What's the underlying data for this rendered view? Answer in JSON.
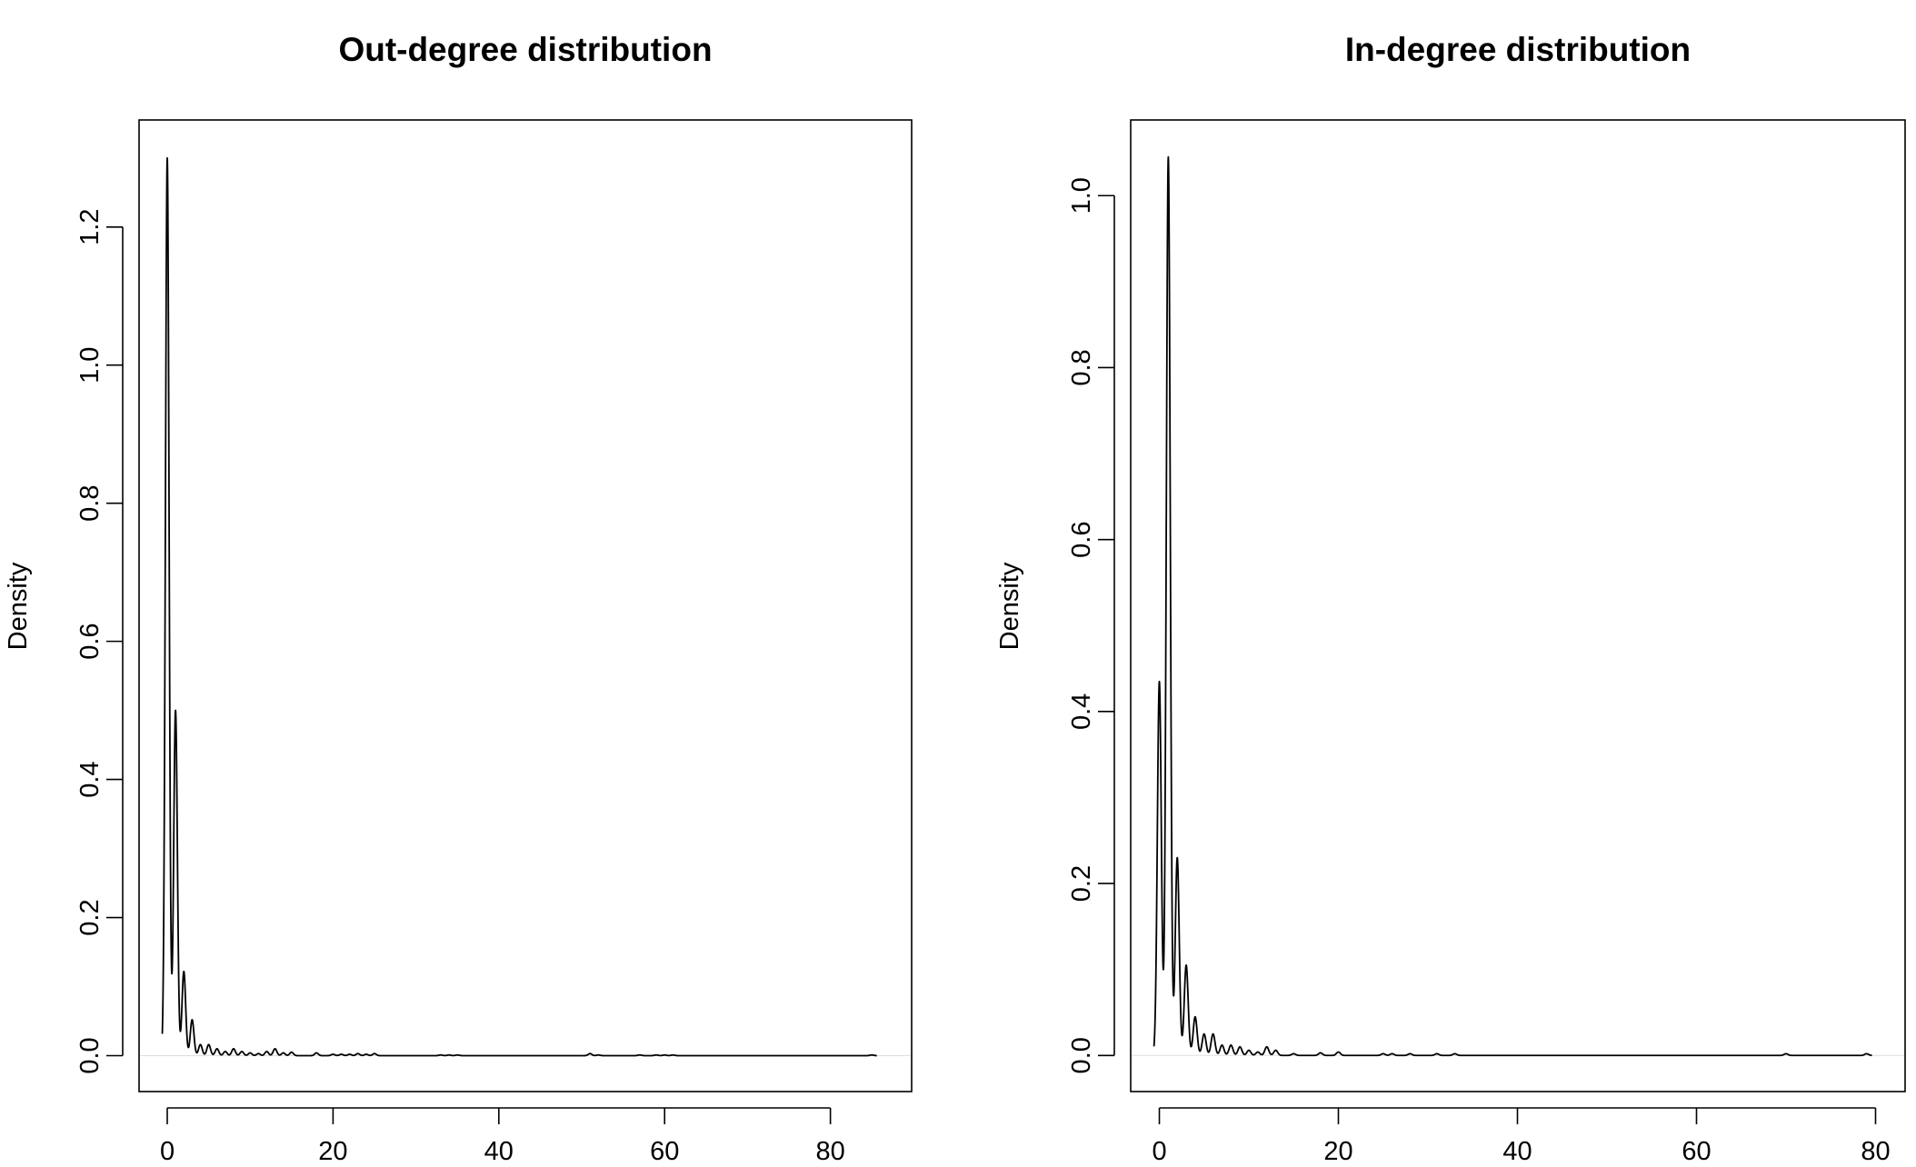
{
  "chart_data": [
    {
      "type": "line",
      "title": "Out-degree distribution",
      "xlabel": "",
      "ylabel": "Density",
      "xlim": [
        -3.4,
        89.8
      ],
      "ylim": [
        -0.052,
        1.355
      ],
      "xticks": [
        0,
        20,
        40,
        60,
        80
      ],
      "yticks": [
        0.0,
        0.2,
        0.4,
        0.6,
        0.8,
        1.0,
        1.2
      ],
      "grid": false,
      "legend": "none",
      "series": [
        {
          "color": "#000000",
          "peaks": [
            [
              0,
              1.3
            ],
            [
              1,
              0.5
            ],
            [
              2,
              0.122
            ],
            [
              3,
              0.052
            ],
            [
              4,
              0.016
            ],
            [
              5,
              0.016
            ],
            [
              6,
              0.01
            ],
            [
              7,
              0.006
            ],
            [
              8,
              0.01
            ],
            [
              9,
              0.006
            ],
            [
              10,
              0.004
            ],
            [
              11,
              0.003
            ],
            [
              12,
              0.006
            ],
            [
              13,
              0.01
            ],
            [
              14,
              0.004
            ],
            [
              15,
              0.005
            ],
            [
              18,
              0.004
            ],
            [
              20,
              0.002
            ],
            [
              21,
              0.002
            ],
            [
              22,
              0.002
            ],
            [
              23,
              0.003
            ],
            [
              24,
              0.002
            ],
            [
              25,
              0.003
            ],
            [
              33,
              0.001
            ],
            [
              34,
              0.001
            ],
            [
              35,
              0.001
            ],
            [
              51,
              0.003
            ],
            [
              52,
              0.001
            ],
            [
              57,
              0.001
            ],
            [
              59,
              0.001
            ],
            [
              60,
              0.001
            ],
            [
              61,
              0.001
            ],
            [
              85,
              0.001
            ]
          ]
        }
      ]
    },
    {
      "type": "line",
      "title": "In-degree distribution",
      "xlabel": "",
      "ylabel": "Density",
      "xlim": [
        -3.2,
        83.3
      ],
      "ylim": [
        -0.042,
        1.088
      ],
      "xticks": [
        0,
        20,
        40,
        60,
        80
      ],
      "yticks": [
        0.0,
        0.2,
        0.4,
        0.6,
        0.8,
        1.0
      ],
      "grid": false,
      "legend": "none",
      "series": [
        {
          "color": "#000000",
          "peaks": [
            [
              0,
              0.435
            ],
            [
              1,
              1.045
            ],
            [
              2,
              0.23
            ],
            [
              3,
              0.105
            ],
            [
              4,
              0.045
            ],
            [
              5,
              0.025
            ],
            [
              6,
              0.025
            ],
            [
              7,
              0.012
            ],
            [
              8,
              0.012
            ],
            [
              9,
              0.01
            ],
            [
              10,
              0.006
            ],
            [
              11,
              0.004
            ],
            [
              12,
              0.01
            ],
            [
              13,
              0.006
            ],
            [
              15,
              0.002
            ],
            [
              18,
              0.003
            ],
            [
              20,
              0.004
            ],
            [
              25,
              0.002
            ],
            [
              26,
              0.002
            ],
            [
              28,
              0.002
            ],
            [
              31,
              0.002
            ],
            [
              33,
              0.002
            ],
            [
              70,
              0.002
            ],
            [
              79,
              0.002
            ]
          ]
        }
      ]
    }
  ]
}
